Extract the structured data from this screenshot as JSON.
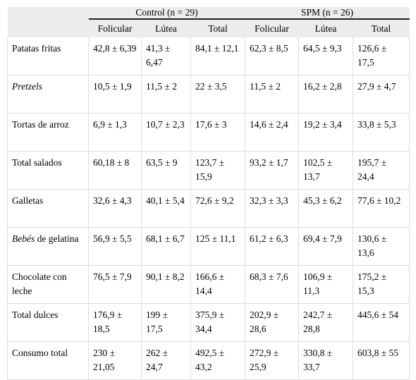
{
  "table": {
    "group_headers": [
      "Control (n = 29)",
      "SPM (n = 26)"
    ],
    "column_headers": [
      "Folicular",
      "Lútea",
      "Total",
      "Folicular",
      "Lútea",
      "Total"
    ],
    "rows": [
      [
        {
          "text": "Patatas fritas"
        },
        "42,8 ± 6,39",
        "41,3 ± 6,47",
        "84,1 ± 12,1",
        "62,3 ± 8,5",
        "64,5 ± 9,3",
        "126,6 ± 17,5"
      ],
      [
        {
          "italic": "Pretzels"
        },
        "10,5 ± 1,9",
        "11,5 ± 2",
        "22 ± 3,5",
        "11,5 ± 2",
        "16,2 ± 2,8",
        "27,9 ± 4,7"
      ],
      [
        {
          "text": "Tortas de arroz"
        },
        "6,9 ± 1,3",
        "10,7 ± 2,3",
        "17,6 ± 3",
        "14,6 ± 2,4",
        "19,2 ± 3,4",
        "33,8 ± 5,3"
      ],
      [
        {
          "text": "Total salados"
        },
        "60,18 ± 8",
        "63,5 ± 9",
        "123,7 ± 15,9",
        "93,2 ± 1,7",
        "102,5 ± 13,7",
        "195,7 ± 24,4"
      ],
      [
        {
          "text": "Galletas"
        },
        "32,6 ± 4,3",
        "40,1 ± 5,4",
        "72,6 ± 9,2",
        "32,3 ± 3,3",
        "45,3 ± 6,2",
        "77,6 ± 10,2"
      ],
      [
        {
          "italic": "Bebés",
          "text": "de gelatina"
        },
        "56,9 ± 5,5",
        "68,1 ± 6,7",
        "125 ± 11,1",
        "61,2 ± 6,3",
        "69,4 ± 7,9",
        "130,6 ± 13,6"
      ],
      [
        {
          "text": "Chocolate con leche"
        },
        "76,5 ± 7,9",
        "90,1 ± 8,2",
        "166,6 ± 14,4",
        "68,3 ± 7,6",
        "106,9 ± 11,3",
        "175,2 ± 15,3"
      ],
      [
        {
          "text": "Total dulces"
        },
        "176,9 ± 18,5",
        "199 ± 17,5",
        "375,9 ± 34,4",
        "202,9 ± 28,6",
        "242,7 ± 28,8",
        "445,6 ± 54"
      ],
      [
        {
          "text": "Consumo total"
        },
        "230 ± 21,05",
        "262 ± 24,7",
        "492,5 ± 43,2",
        "272,9 ± 25,9",
        "330,8 ± 33,7",
        "603,8 ± 55"
      ]
    ]
  }
}
